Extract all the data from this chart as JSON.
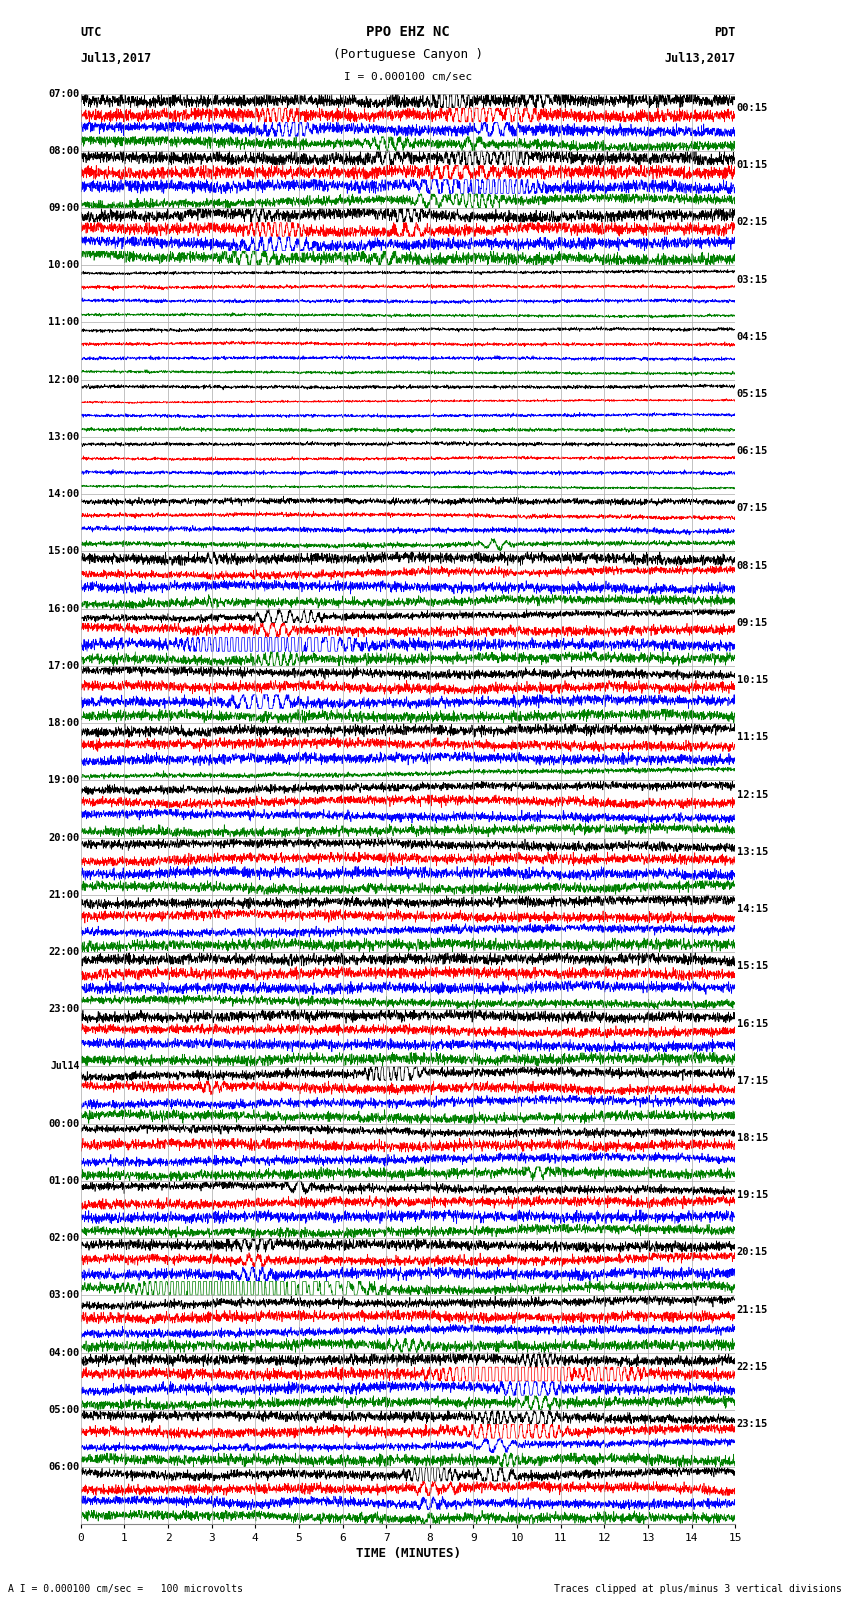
{
  "title_line1": "PPO EHZ NC",
  "title_line2": "(Portuguese Canyon )",
  "scale_label": "I = 0.000100 cm/sec",
  "utc_label": "UTC",
  "utc_date": "Jul13,2017",
  "pdt_label": "PDT",
  "pdt_date": "Jul13,2017",
  "xlabel": "TIME (MINUTES)",
  "footer_left": "A I = 0.000100 cm/sec =   100 microvolts",
  "footer_right": "Traces clipped at plus/minus 3 vertical divisions",
  "left_times": [
    "07:00",
    "08:00",
    "09:00",
    "10:00",
    "11:00",
    "12:00",
    "13:00",
    "14:00",
    "15:00",
    "16:00",
    "17:00",
    "18:00",
    "19:00",
    "20:00",
    "21:00",
    "22:00",
    "23:00",
    "Jul14",
    "00:00",
    "01:00",
    "02:00",
    "03:00",
    "04:00",
    "05:00",
    "06:00"
  ],
  "right_times": [
    "00:15",
    "01:15",
    "02:15",
    "03:15",
    "04:15",
    "05:15",
    "06:15",
    "07:15",
    "08:15",
    "09:15",
    "10:15",
    "11:15",
    "12:15",
    "13:15",
    "14:15",
    "15:15",
    "16:15",
    "17:15",
    "18:15",
    "19:15",
    "20:15",
    "21:15",
    "22:15",
    "23:15"
  ],
  "n_rows": 25,
  "n_subrows": 4,
  "colors": [
    "black",
    "red",
    "blue",
    "green"
  ],
  "background_color": "#ffffff",
  "grid_color": "#aaaaaa",
  "xlim": [
    0,
    15
  ],
  "xticks": [
    0,
    1,
    2,
    3,
    4,
    5,
    6,
    7,
    8,
    9,
    10,
    11,
    12,
    13,
    14,
    15
  ],
  "figsize": [
    8.5,
    16.13
  ],
  "dpi": 100
}
